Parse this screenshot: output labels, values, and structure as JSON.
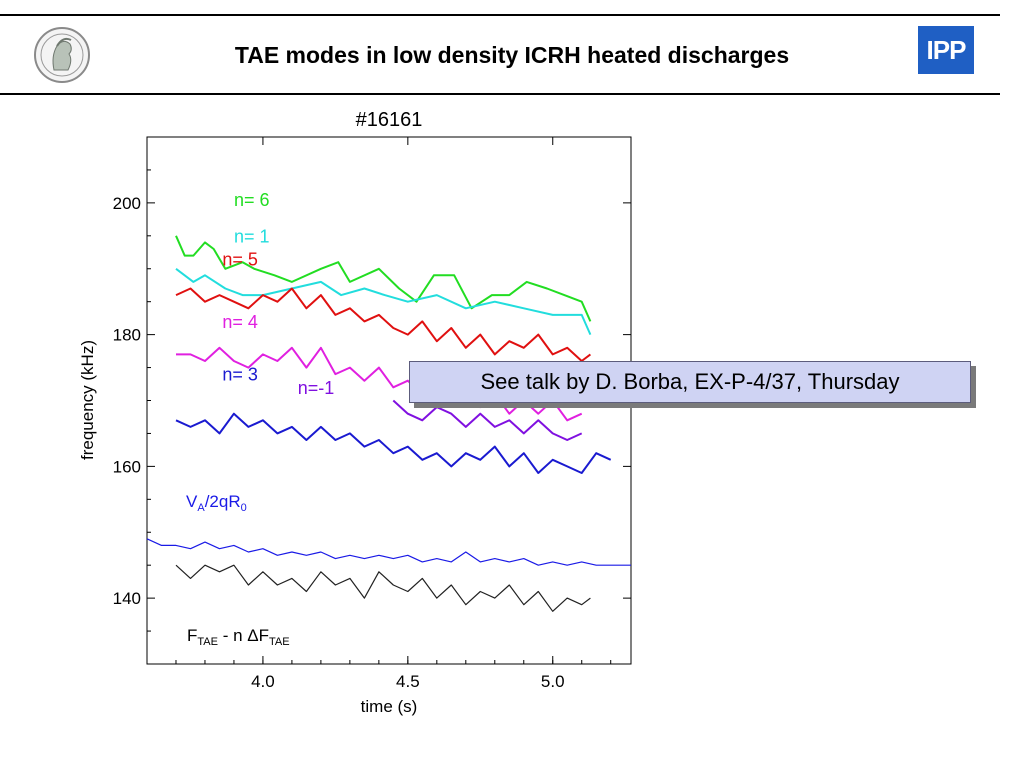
{
  "slide": {
    "title": "TAE modes in low density ICRH heated discharges",
    "logo_left_icon": "minerva-seal-icon",
    "logo_right_text": "IPP",
    "callout_text": "See talk by D. Borba, EX-P-4/37, Thursday"
  },
  "chart_data": {
    "type": "line",
    "title": "#16161",
    "xlabel": "time (s)",
    "ylabel": "frequency (kHz)",
    "xlim": [
      3.6,
      5.27
    ],
    "ylim": [
      130,
      210
    ],
    "xticks": [
      4.0,
      4.5,
      5.0
    ],
    "xtick_labels": [
      "4.0",
      "4.5",
      "5.0"
    ],
    "yticks": [
      140,
      160,
      180,
      200
    ],
    "ytick_labels": [
      "140",
      "160",
      "180",
      "200"
    ],
    "grid": false,
    "annotations": {
      "va_label": {
        "main": "V",
        "sub1": "A",
        "mid": "/2qR",
        "sub2": "0",
        "color": "#1a1ae6"
      },
      "ftae_label": {
        "f": "F",
        "sub1": "TAE",
        "mid": " - n ΔF",
        "sub2": "TAE",
        "color": "#000000"
      }
    },
    "series": [
      {
        "name": "n= 6",
        "color": "#22dd22",
        "x": [
          3.7,
          3.73,
          3.76,
          3.8,
          3.83,
          3.87,
          3.93,
          3.97,
          4.04,
          4.1,
          4.2,
          4.26,
          4.3,
          4.4,
          4.47,
          4.53,
          4.59,
          4.66,
          4.72,
          4.79,
          4.85,
          4.91,
          4.98,
          5.04,
          5.1,
          5.13
        ],
        "y": [
          195,
          192,
          192,
          194,
          193,
          190,
          191,
          190,
          189,
          188,
          190,
          191,
          188,
          190,
          187,
          185,
          189,
          189,
          184,
          186,
          186,
          188,
          187,
          186,
          185,
          182
        ]
      },
      {
        "name": "n= 1",
        "color": "#22dddd",
        "x": [
          3.7,
          3.76,
          3.8,
          3.87,
          3.93,
          4.0,
          4.1,
          4.2,
          4.27,
          4.35,
          4.42,
          4.5,
          4.6,
          4.7,
          4.8,
          4.9,
          5.0,
          5.1,
          5.13
        ],
        "y": [
          190,
          188,
          189,
          187,
          186,
          186,
          187,
          188,
          186,
          187,
          186,
          185,
          186,
          184,
          185,
          184,
          183,
          183,
          180
        ]
      },
      {
        "name": "n= 5",
        "color": "#e01010",
        "x": [
          3.7,
          3.75,
          3.8,
          3.85,
          3.9,
          3.95,
          4.0,
          4.05,
          4.1,
          4.15,
          4.2,
          4.25,
          4.3,
          4.35,
          4.4,
          4.45,
          4.5,
          4.55,
          4.6,
          4.65,
          4.7,
          4.75,
          4.8,
          4.85,
          4.9,
          4.95,
          5.0,
          5.05,
          5.1,
          5.13
        ],
        "y": [
          186,
          187,
          185,
          186,
          185,
          184,
          186,
          185,
          187,
          184,
          186,
          183,
          184,
          182,
          183,
          181,
          180,
          182,
          179,
          181,
          178,
          180,
          177,
          179,
          178,
          180,
          177,
          178,
          176,
          177
        ]
      },
      {
        "name": "n= 4",
        "color": "#e020e0",
        "x": [
          3.7,
          3.75,
          3.8,
          3.85,
          3.9,
          3.95,
          4.0,
          4.05,
          4.1,
          4.15,
          4.2,
          4.25,
          4.3,
          4.35,
          4.4,
          4.45,
          4.5,
          4.55,
          4.6,
          4.65,
          4.7,
          4.75,
          4.8,
          4.85,
          4.9,
          4.95,
          5.0,
          5.05,
          5.1
        ],
        "y": [
          177,
          177,
          176,
          178,
          176,
          175,
          177,
          176,
          178,
          175,
          178,
          174,
          175,
          173,
          175,
          172,
          173,
          171,
          173,
          170,
          172,
          169,
          171,
          168,
          170,
          168,
          170,
          167,
          168
        ]
      },
      {
        "name": "n= 3",
        "color": "#1a1ad0",
        "x": [
          3.7,
          3.75,
          3.8,
          3.85,
          3.9,
          3.95,
          4.0,
          4.05,
          4.1,
          4.15,
          4.2,
          4.25,
          4.3,
          4.35,
          4.4,
          4.45,
          4.5,
          4.55,
          4.6,
          4.65,
          4.7,
          4.75,
          4.8,
          4.85,
          4.9,
          4.95,
          5.0,
          5.05,
          5.1,
          5.15,
          5.2
        ],
        "y": [
          167,
          166,
          167,
          165,
          168,
          166,
          167,
          165,
          166,
          164,
          166,
          164,
          165,
          163,
          164,
          162,
          163,
          161,
          162,
          160,
          162,
          161,
          163,
          160,
          162,
          159,
          161,
          160,
          159,
          162,
          161
        ]
      },
      {
        "name": "n=-1",
        "color": "#8010e0",
        "x": [
          4.45,
          4.5,
          4.55,
          4.6,
          4.65,
          4.7,
          4.75,
          4.8,
          4.85,
          4.9,
          4.95,
          5.0,
          5.05,
          5.1
        ],
        "y": [
          170,
          168,
          167,
          169,
          168,
          166,
          168,
          166,
          167,
          165,
          167,
          165,
          164,
          165
        ]
      },
      {
        "name": "",
        "color": "#1a1ae6",
        "x": [
          3.6,
          3.65,
          3.7,
          3.75,
          3.8,
          3.85,
          3.9,
          3.95,
          4.0,
          4.05,
          4.1,
          4.15,
          4.2,
          4.25,
          4.3,
          4.35,
          4.4,
          4.45,
          4.5,
          4.55,
          4.6,
          4.65,
          4.7,
          4.75,
          4.8,
          4.85,
          4.9,
          4.95,
          5.0,
          5.05,
          5.1,
          5.15,
          5.2,
          5.27
        ],
        "y": [
          149,
          148,
          148,
          147.5,
          148.5,
          147.5,
          148,
          147,
          147.5,
          146.5,
          147,
          146.5,
          147,
          146,
          146.5,
          146,
          146.5,
          146,
          146.5,
          145.5,
          146,
          145.5,
          147,
          145.5,
          146,
          145.5,
          146,
          145,
          145.5,
          145,
          145.5,
          145,
          145,
          145
        ]
      },
      {
        "name": "",
        "color": "#222222",
        "x": [
          3.7,
          3.75,
          3.8,
          3.85,
          3.9,
          3.95,
          4.0,
          4.05,
          4.1,
          4.15,
          4.2,
          4.25,
          4.3,
          4.35,
          4.4,
          4.45,
          4.5,
          4.55,
          4.6,
          4.65,
          4.7,
          4.75,
          4.8,
          4.85,
          4.9,
          4.95,
          5.0,
          5.05,
          5.1,
          5.13
        ],
        "y": [
          145,
          143,
          145,
          144,
          145,
          142,
          144,
          142,
          143,
          141,
          144,
          142,
          143,
          140,
          144,
          142,
          141,
          143,
          140,
          142,
          139,
          141,
          140,
          142,
          139,
          141,
          138,
          140,
          139,
          140
        ]
      }
    ],
    "series_labels": [
      {
        "text": "n= 6",
        "x": 3.9,
        "y": 199.5,
        "color": "#22dd22"
      },
      {
        "text": "n= 1",
        "x": 3.9,
        "y": 194,
        "color": "#22dddd"
      },
      {
        "text": "n= 5",
        "x": 3.86,
        "y": 190.5,
        "color": "#e01010"
      },
      {
        "text": "n= 4",
        "x": 3.86,
        "y": 181,
        "color": "#e020e0"
      },
      {
        "text": "n= 3",
        "x": 3.86,
        "y": 173,
        "color": "#1a1ad0"
      },
      {
        "text": "n=-1",
        "x": 4.12,
        "y": 171,
        "color": "#8010e0"
      }
    ]
  }
}
